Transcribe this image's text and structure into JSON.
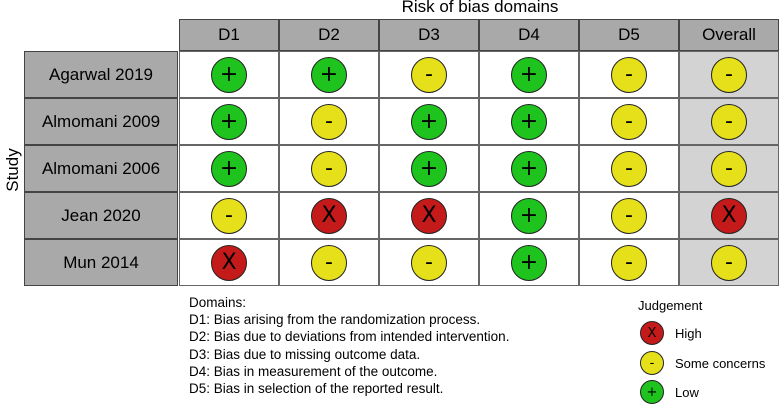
{
  "title": "Risk of bias domains",
  "ylabel": "Study",
  "domains": [
    "D1",
    "D2",
    "D3",
    "D4",
    "D5",
    "Overall"
  ],
  "studies": [
    {
      "name": "Agarwal 2019",
      "judgements": [
        "low",
        "low",
        "some",
        "low",
        "some",
        "some"
      ]
    },
    {
      "name": "Almomani 2009",
      "judgements": [
        "low",
        "some",
        "low",
        "low",
        "some",
        "some"
      ]
    },
    {
      "name": "Almomani 2006",
      "judgements": [
        "low",
        "some",
        "low",
        "low",
        "some",
        "some"
      ]
    },
    {
      "name": "Jean 2020",
      "judgements": [
        "some",
        "high",
        "high",
        "low",
        "some",
        "high"
      ]
    },
    {
      "name": "Mun 2014",
      "judgements": [
        "high",
        "some",
        "some",
        "low",
        "some",
        "some"
      ]
    }
  ],
  "symbols": {
    "low": "+",
    "some": "-",
    "high": "X"
  },
  "colors": {
    "low": "#1ec31e",
    "some": "#e6e01a",
    "high": "#c41a1a"
  },
  "domain_notes": {
    "heading": "Domains:",
    "lines": [
      "D1: Bias arising from the randomization process.",
      "D2: Bias due to deviations from intended intervention.",
      "D3: Bias due to missing outcome data.",
      "D4: Bias in measurement of the outcome.",
      "D5: Bias in selection of the reported result."
    ]
  },
  "legend": {
    "title": "Judgement",
    "items": [
      {
        "key": "high",
        "label": "High"
      },
      {
        "key": "some",
        "label": "Some concerns"
      },
      {
        "key": "low",
        "label": "Low"
      }
    ]
  }
}
